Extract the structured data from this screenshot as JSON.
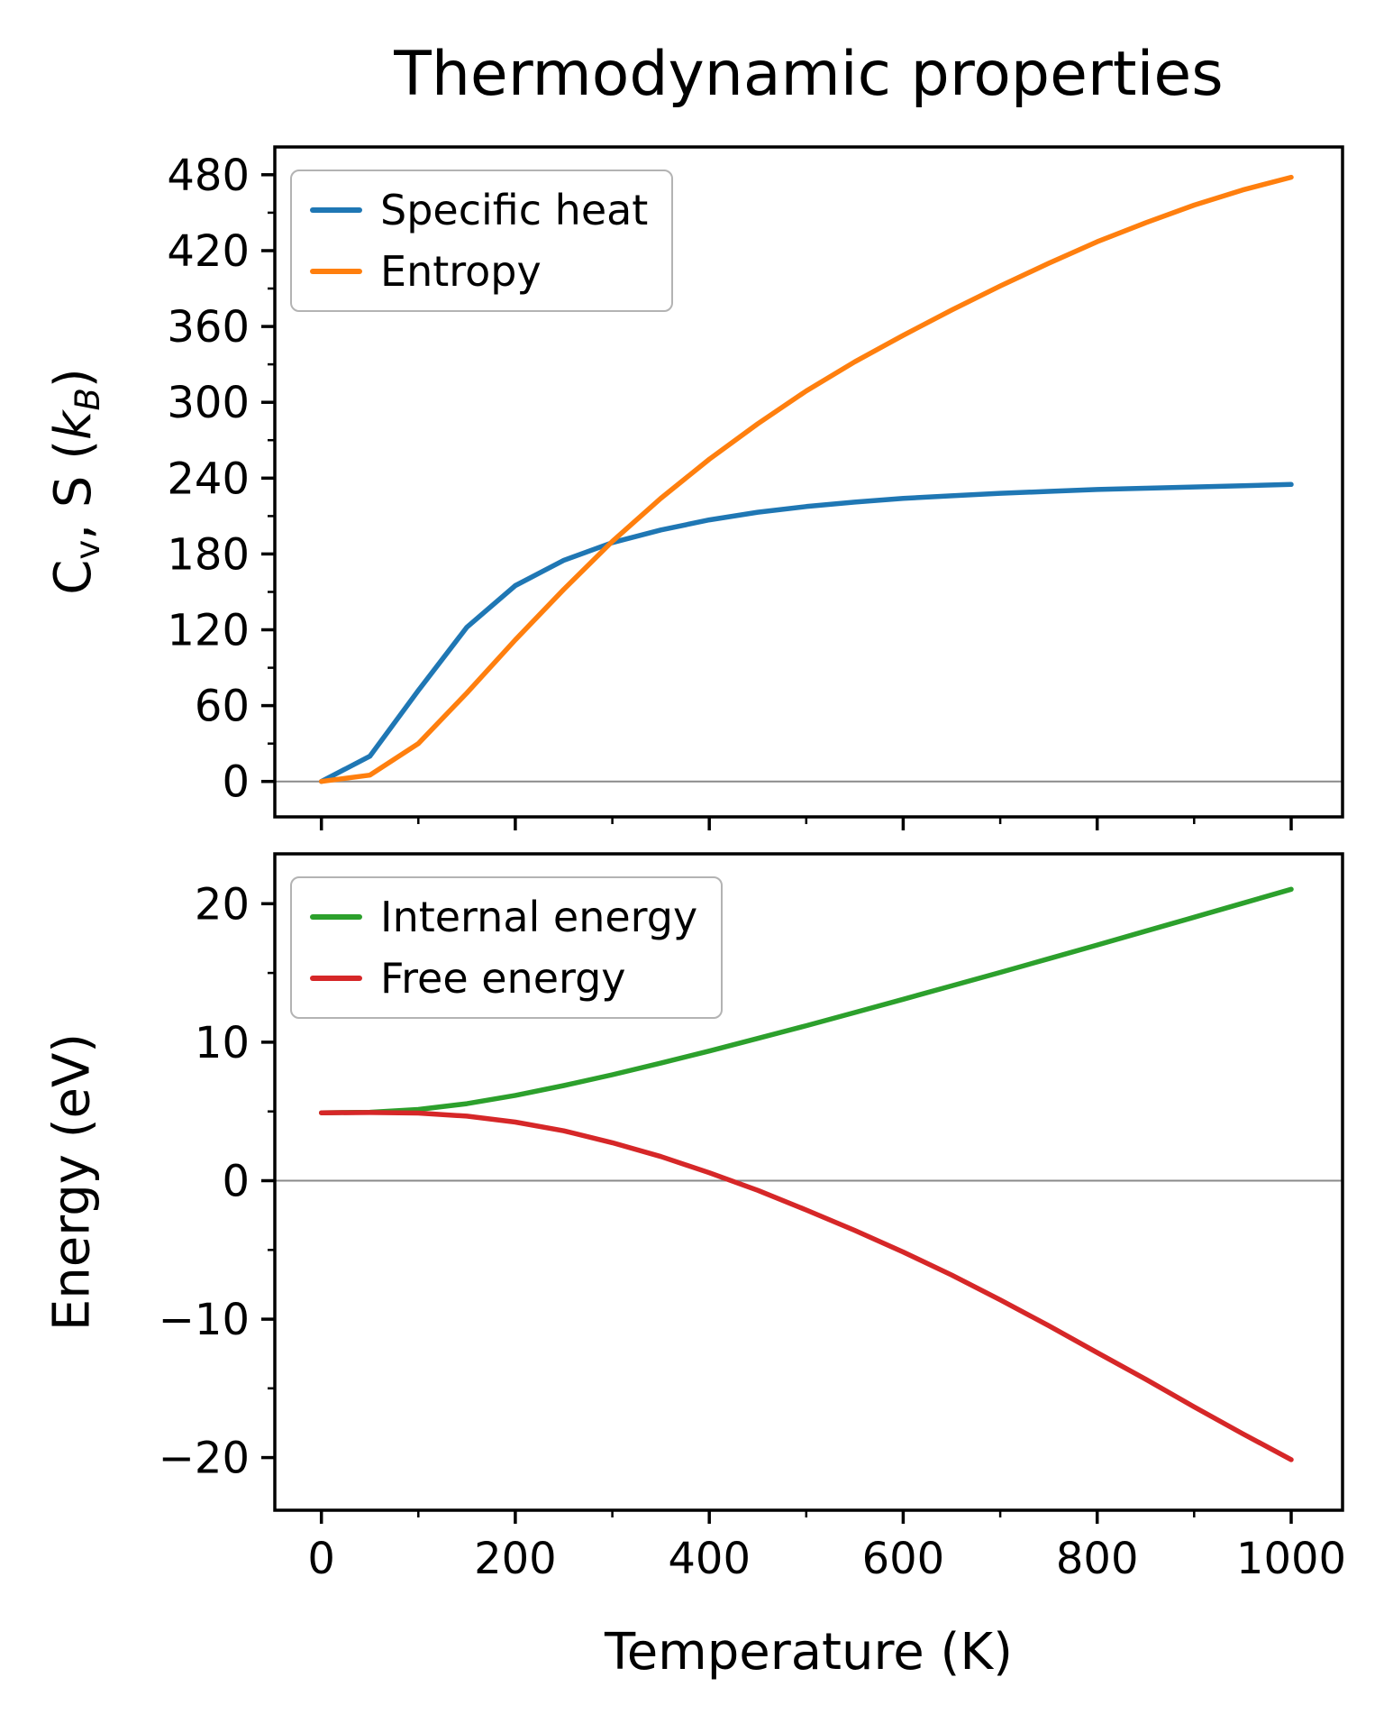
{
  "figure": {
    "title": "Thermodynamic properties",
    "background": "#ffffff"
  },
  "chart_data": [
    {
      "type": "line",
      "panel": "top",
      "ylabel": "Cv, S (kB)",
      "ylabel_parts": {
        "main1": "C",
        "sub1": "v",
        "main2": ", S (",
        "italic1": "k",
        "sub2": "B",
        "main3": ")"
      },
      "x": [
        0,
        50,
        100,
        150,
        200,
        250,
        300,
        350,
        400,
        450,
        500,
        550,
        600,
        650,
        700,
        750,
        800,
        850,
        900,
        950,
        1000
      ],
      "series": [
        {
          "name": "Specific heat",
          "color": "#1f77b4",
          "values": [
            0,
            20,
            72,
            122,
            155,
            175,
            189,
            199,
            207,
            213,
            217.5,
            221,
            224,
            226,
            228,
            229.5,
            231,
            232,
            233,
            234,
            235
          ]
        },
        {
          "name": "Entropy",
          "color": "#ff7f0e",
          "values": [
            0,
            5,
            30,
            70,
            112,
            152,
            190,
            224,
            255,
            283,
            309,
            332,
            353,
            373,
            392,
            410,
            427,
            442,
            456,
            468,
            478
          ]
        }
      ],
      "xlim": [
        -48,
        1053
      ],
      "ylim": [
        -28,
        502
      ],
      "xticks": [
        0,
        200,
        400,
        600,
        800,
        1000
      ],
      "yticks": [
        0,
        60,
        120,
        180,
        240,
        300,
        360,
        420,
        480
      ],
      "x_tick_labels_visible": false,
      "grid": false,
      "zero_line": true,
      "zero_line_color": "#8a8a8a",
      "legend": {
        "position": "upper left"
      }
    },
    {
      "type": "line",
      "panel": "bottom",
      "xlabel": "Temperature (K)",
      "ylabel": "Energy (eV)",
      "x": [
        0,
        50,
        100,
        150,
        200,
        250,
        300,
        350,
        400,
        450,
        500,
        550,
        600,
        650,
        700,
        750,
        800,
        850,
        900,
        950,
        1000
      ],
      "series": [
        {
          "name": "Internal energy",
          "color": "#2ca02c",
          "values": [
            4.9,
            4.94,
            5.14,
            5.56,
            6.16,
            6.87,
            7.65,
            8.49,
            9.36,
            10.27,
            11.19,
            12.14,
            13.1,
            14.07,
            15.04,
            16.03,
            17.02,
            18.02,
            19.02,
            20.03,
            21.04
          ]
        },
        {
          "name": "Free energy",
          "color": "#d62728",
          "values": [
            4.9,
            4.92,
            4.88,
            4.66,
            4.23,
            3.6,
            2.74,
            1.74,
            0.57,
            -0.7,
            -2.12,
            -3.59,
            -5.15,
            -6.82,
            -8.61,
            -10.47,
            -12.42,
            -14.34,
            -16.34,
            -18.27,
            -20.15
          ]
        }
      ],
      "xlim": [
        -48,
        1053
      ],
      "ylim": [
        -23.8,
        23.6
      ],
      "xticks": [
        0,
        200,
        400,
        600,
        800,
        1000
      ],
      "yticks": [
        -20,
        -10,
        0,
        10,
        20
      ],
      "x_tick_labels_visible": true,
      "grid": false,
      "zero_line": true,
      "zero_line_color": "#8a8a8a",
      "legend": {
        "position": "upper left"
      }
    }
  ]
}
